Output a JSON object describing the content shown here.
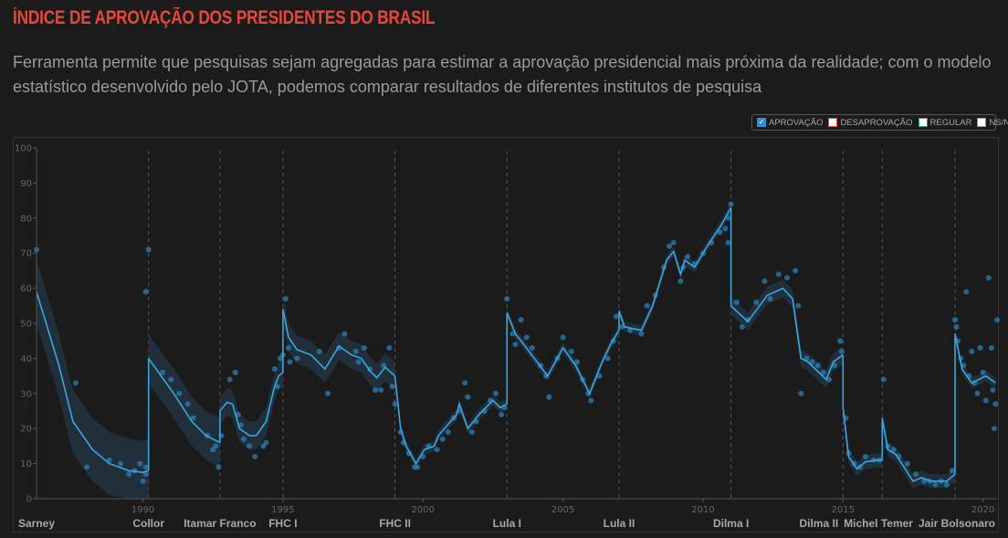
{
  "header": {
    "title": "ÍNDICE DE APROVAÇÃO DOS PRESIDENTES DO BRASIL",
    "subtitle": "Ferramenta permite que pesquisas sejam agregadas para estimar a aprovação presidencial mais próxima da realidade; com o modelo estatístico desenvolvido pelo JOTA, podemos comparar resultados de diferentes institutos de pesquisa"
  },
  "legend": [
    {
      "label": "APROVAÇÃO",
      "color": "#2a8fd6",
      "checked": true
    },
    {
      "label": "DESAPROVAÇÃO",
      "color": "#e8473a",
      "checked": false
    },
    {
      "label": "REGULAR",
      "color": "#2e9e6a",
      "checked": false
    },
    {
      "label": "NS/NR",
      "color": "#9a958a",
      "checked": false
    }
  ],
  "chart_data": {
    "type": "line",
    "xlim": [
      1986.2,
      2020.5
    ],
    "ylim": [
      0,
      100
    ],
    "yticks": [
      "0",
      "10",
      "20",
      "30",
      "40",
      "50",
      "60",
      "70",
      "80",
      "90",
      "100"
    ],
    "xticks": [
      "1990",
      "1995",
      "2000",
      "2005",
      "2010",
      "2015",
      "2020"
    ],
    "colors": {
      "line": "#3aa6e0",
      "points": "#2a7fb8",
      "band": "#22323e"
    },
    "presidents": [
      {
        "name": "Sarney",
        "start": 1985.2,
        "ci": 9
      },
      {
        "name": "Collor",
        "start": 1990.2,
        "ci": 7
      },
      {
        "name": "Itamar Franco",
        "start": 1992.75,
        "ci": 4
      },
      {
        "name": "FHC I",
        "start": 1995.0,
        "ci": 4
      },
      {
        "name": "FHC II",
        "start": 1999.0,
        "ci": 1.5
      },
      {
        "name": "Lula I",
        "start": 2003.0,
        "ci": 1.5
      },
      {
        "name": "Lula II",
        "start": 2007.0,
        "ci": 1.5
      },
      {
        "name": "Dilma I",
        "start": 2011.0,
        "ci": 2.5
      },
      {
        "name": "Dilma II",
        "start": 2015.0,
        "ci": 2
      },
      {
        "name": "Michel Temer",
        "start": 2016.4,
        "ci": 2
      },
      {
        "name": "Jair Bolsonaro",
        "start": 2019.0,
        "ci": 1.5
      }
    ],
    "trend": [
      [
        [
          1986.2,
          59
        ],
        [
          1987.0,
          38
        ],
        [
          1987.5,
          22
        ],
        [
          1988.2,
          14
        ],
        [
          1988.8,
          10
        ],
        [
          1989.5,
          8
        ],
        [
          1990.0,
          7.5
        ],
        [
          1990.2,
          8
        ]
      ],
      [
        [
          1990.2,
          40
        ],
        [
          1991.1,
          30
        ],
        [
          1991.75,
          22
        ],
        [
          1992.25,
          18
        ],
        [
          1992.75,
          16
        ]
      ],
      [
        [
          1992.75,
          25
        ],
        [
          1993.0,
          27.5
        ],
        [
          1993.2,
          27
        ],
        [
          1993.45,
          20
        ],
        [
          1993.8,
          18
        ],
        [
          1994.05,
          18
        ],
        [
          1994.4,
          22
        ],
        [
          1994.7,
          32
        ],
        [
          1994.85,
          35
        ],
        [
          1995.0,
          36
        ]
      ],
      [
        [
          1995.0,
          54
        ],
        [
          1995.2,
          46
        ],
        [
          1995.5,
          42.5
        ],
        [
          1996.0,
          41
        ],
        [
          1996.5,
          37
        ],
        [
          1997.0,
          43.5
        ],
        [
          1997.45,
          41
        ],
        [
          1997.8,
          40
        ],
        [
          1998.1,
          36.5
        ],
        [
          1998.35,
          34.5
        ],
        [
          1998.65,
          37.5
        ],
        [
          1999.0,
          35
        ]
      ],
      [
        [
          1999.0,
          35
        ],
        [
          1999.2,
          20
        ],
        [
          1999.4,
          15
        ],
        [
          1999.75,
          10
        ],
        [
          2000.05,
          14
        ],
        [
          2000.4,
          15
        ],
        [
          2000.55,
          18
        ],
        [
          2001.2,
          24
        ],
        [
          2001.3,
          27
        ],
        [
          2001.6,
          20
        ],
        [
          2002.0,
          24
        ],
        [
          2002.5,
          28
        ],
        [
          2002.75,
          26
        ],
        [
          2003.0,
          27
        ]
      ],
      [
        [
          2003.0,
          53
        ],
        [
          2003.3,
          47
        ],
        [
          2003.6,
          44
        ],
        [
          2004.45,
          35
        ],
        [
          2005.0,
          43
        ],
        [
          2005.45,
          38
        ],
        [
          2005.95,
          30
        ],
        [
          2006.4,
          39
        ],
        [
          2006.7,
          44
        ],
        [
          2007.0,
          48
        ]
      ],
      [
        [
          2007.0,
          53.5
        ],
        [
          2007.2,
          49
        ],
        [
          2007.8,
          48
        ],
        [
          2008.2,
          55
        ],
        [
          2008.7,
          68
        ],
        [
          2008.95,
          70.5
        ],
        [
          2009.2,
          64
        ],
        [
          2009.35,
          68
        ],
        [
          2009.7,
          66
        ],
        [
          2010.15,
          72
        ],
        [
          2010.65,
          78
        ],
        [
          2011.0,
          83
        ]
      ],
      [
        [
          2011.0,
          55
        ],
        [
          2011.6,
          50.5
        ],
        [
          2012.3,
          58
        ],
        [
          2012.85,
          60
        ],
        [
          2013.2,
          57
        ],
        [
          2013.5,
          40
        ],
        [
          2013.75,
          39
        ],
        [
          2014.4,
          34
        ],
        [
          2014.65,
          39
        ],
        [
          2015.0,
          41
        ]
      ],
      [
        [
          2015.0,
          26
        ],
        [
          2015.2,
          12
        ],
        [
          2015.5,
          8.5
        ],
        [
          2015.8,
          10.5
        ],
        [
          2016.2,
          11
        ],
        [
          2016.4,
          11
        ]
      ],
      [
        [
          2016.4,
          23
        ],
        [
          2016.6,
          14
        ],
        [
          2016.9,
          12.5
        ],
        [
          2017.5,
          5
        ],
        [
          2017.8,
          6
        ],
        [
          2018.15,
          5
        ],
        [
          2018.7,
          5
        ],
        [
          2019.0,
          7
        ]
      ],
      [
        [
          2019.0,
          47
        ],
        [
          2019.25,
          37
        ],
        [
          2019.6,
          33
        ],
        [
          2020.1,
          35
        ],
        [
          2020.45,
          33
        ]
      ]
    ],
    "points": [
      [
        1986.2,
        71
      ],
      [
        1987.6,
        33
      ],
      [
        1988.0,
        9
      ],
      [
        1988.8,
        11
      ],
      [
        1989.2,
        10
      ],
      [
        1989.5,
        7
      ],
      [
        1989.7,
        8
      ],
      [
        1989.9,
        10
      ],
      [
        1990.0,
        5
      ],
      [
        1990.1,
        7
      ],
      [
        1990.1,
        9
      ],
      [
        1990.1,
        59
      ],
      [
        1990.2,
        71
      ],
      [
        1990.7,
        36
      ],
      [
        1991.0,
        34
      ],
      [
        1991.3,
        30
      ],
      [
        1991.6,
        27
      ],
      [
        1991.8,
        23
      ],
      [
        1992.3,
        18
      ],
      [
        1992.5,
        14
      ],
      [
        1992.6,
        15
      ],
      [
        1992.7,
        9
      ],
      [
        1992.8,
        18
      ],
      [
        1993.1,
        34
      ],
      [
        1993.3,
        36
      ],
      [
        1993.4,
        24
      ],
      [
        1993.5,
        21
      ],
      [
        1993.6,
        17
      ],
      [
        1993.8,
        15
      ],
      [
        1994.0,
        12
      ],
      [
        1994.3,
        15
      ],
      [
        1994.4,
        16
      ],
      [
        1994.7,
        37
      ],
      [
        1994.8,
        32
      ],
      [
        1994.9,
        40
      ],
      [
        1995.0,
        41
      ],
      [
        1995.1,
        57
      ],
      [
        1995.2,
        43
      ],
      [
        1995.25,
        39
      ],
      [
        1995.5,
        40
      ],
      [
        1996.3,
        42
      ],
      [
        1996.6,
        30
      ],
      [
        1997.0,
        43
      ],
      [
        1997.2,
        47
      ],
      [
        1997.6,
        42
      ],
      [
        1997.7,
        39
      ],
      [
        1997.9,
        43
      ],
      [
        1998.1,
        37
      ],
      [
        1998.3,
        31
      ],
      [
        1998.5,
        31
      ],
      [
        1998.6,
        38
      ],
      [
        1998.8,
        43
      ],
      [
        1998.9,
        32
      ],
      [
        1999.0,
        27
      ],
      [
        1999.2,
        19
      ],
      [
        1999.3,
        16
      ],
      [
        1999.5,
        13
      ],
      [
        1999.7,
        9
      ],
      [
        1999.8,
        9
      ],
      [
        2000.0,
        12
      ],
      [
        2000.2,
        15
      ],
      [
        2000.5,
        14
      ],
      [
        2000.7,
        17
      ],
      [
        2000.9,
        19
      ],
      [
        2001.1,
        23
      ],
      [
        2001.3,
        25
      ],
      [
        2001.5,
        33
      ],
      [
        2001.6,
        29
      ],
      [
        2001.75,
        19
      ],
      [
        2001.9,
        22
      ],
      [
        2002.2,
        25
      ],
      [
        2002.4,
        28
      ],
      [
        2002.6,
        30
      ],
      [
        2002.8,
        24
      ],
      [
        2002.9,
        26
      ],
      [
        2003.0,
        57
      ],
      [
        2003.2,
        47
      ],
      [
        2003.3,
        44
      ],
      [
        2003.5,
        51
      ],
      [
        2003.7,
        46
      ],
      [
        2003.9,
        43
      ],
      [
        2004.2,
        38
      ],
      [
        2004.4,
        35
      ],
      [
        2004.5,
        29
      ],
      [
        2004.8,
        40
      ],
      [
        2005.0,
        46
      ],
      [
        2005.3,
        42
      ],
      [
        2005.5,
        39
      ],
      [
        2005.7,
        34
      ],
      [
        2005.9,
        30
      ],
      [
        2006.0,
        28
      ],
      [
        2006.3,
        35
      ],
      [
        2006.6,
        40
      ],
      [
        2006.8,
        45
      ],
      [
        2006.9,
        52
      ],
      [
        2007.1,
        49
      ],
      [
        2007.4,
        48
      ],
      [
        2007.8,
        47
      ],
      [
        2008.0,
        55
      ],
      [
        2008.3,
        58
      ],
      [
        2008.6,
        66
      ],
      [
        2008.8,
        72
      ],
      [
        2008.95,
        73
      ],
      [
        2009.2,
        62
      ],
      [
        2009.3,
        66
      ],
      [
        2009.45,
        69
      ],
      [
        2009.7,
        67
      ],
      [
        2010.0,
        70
      ],
      [
        2010.3,
        73
      ],
      [
        2010.6,
        76
      ],
      [
        2010.8,
        77
      ],
      [
        2010.9,
        80
      ],
      [
        2010.9,
        73
      ],
      [
        2011.0,
        84
      ],
      [
        2011.2,
        56
      ],
      [
        2011.4,
        49
      ],
      [
        2011.6,
        51
      ],
      [
        2011.9,
        56
      ],
      [
        2012.2,
        62
      ],
      [
        2012.4,
        57
      ],
      [
        2012.7,
        64
      ],
      [
        2013.0,
        63
      ],
      [
        2013.3,
        65
      ],
      [
        2013.4,
        55
      ],
      [
        2013.5,
        30
      ],
      [
        2013.7,
        40
      ],
      [
        2013.9,
        39
      ],
      [
        2014.1,
        38
      ],
      [
        2014.3,
        36
      ],
      [
        2014.5,
        34
      ],
      [
        2014.7,
        38
      ],
      [
        2014.9,
        45
      ],
      [
        2014.95,
        42
      ],
      [
        2015.1,
        23
      ],
      [
        2015.2,
        13
      ],
      [
        2015.4,
        10
      ],
      [
        2015.6,
        9
      ],
      [
        2015.8,
        12
      ],
      [
        2016.1,
        11
      ],
      [
        2016.3,
        11
      ],
      [
        2016.45,
        34
      ],
      [
        2016.6,
        15
      ],
      [
        2016.8,
        14
      ],
      [
        2017.0,
        12
      ],
      [
        2017.3,
        10
      ],
      [
        2017.6,
        7
      ],
      [
        2017.9,
        5
      ],
      [
        2018.1,
        5
      ],
      [
        2018.3,
        4
      ],
      [
        2018.5,
        5
      ],
      [
        2018.7,
        4
      ],
      [
        2018.9,
        8
      ],
      [
        2019.0,
        51
      ],
      [
        2019.05,
        49
      ],
      [
        2019.1,
        45
      ],
      [
        2019.2,
        40
      ],
      [
        2019.3,
        38
      ],
      [
        2019.4,
        59
      ],
      [
        2019.5,
        35
      ],
      [
        2019.6,
        42
      ],
      [
        2019.7,
        33
      ],
      [
        2019.8,
        30
      ],
      [
        2019.9,
        43
      ],
      [
        2020.0,
        36
      ],
      [
        2020.1,
        28
      ],
      [
        2020.2,
        63
      ],
      [
        2020.3,
        43
      ],
      [
        2020.35,
        31
      ],
      [
        2020.4,
        20
      ],
      [
        2020.45,
        27
      ],
      [
        2020.5,
        51
      ]
    ]
  }
}
